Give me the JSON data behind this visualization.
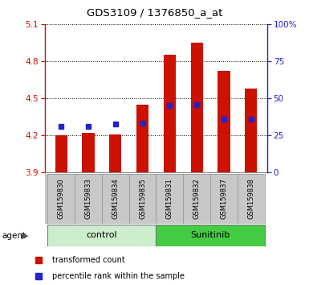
{
  "title": "GDS3109 / 1376850_a_at",
  "samples": [
    "GSM159830",
    "GSM159833",
    "GSM159834",
    "GSM159835",
    "GSM159831",
    "GSM159832",
    "GSM159837",
    "GSM159838"
  ],
  "groups": [
    "control",
    "control",
    "control",
    "control",
    "Sunitinib",
    "Sunitinib",
    "Sunitinib",
    "Sunitinib"
  ],
  "bar_tops": [
    4.2,
    4.22,
    4.21,
    4.45,
    4.85,
    4.95,
    4.72,
    4.58
  ],
  "bar_base": 3.9,
  "blue_vals": [
    4.27,
    4.27,
    4.29,
    4.3,
    4.44,
    4.45,
    4.33,
    4.33
  ],
  "ylim_left": [
    3.9,
    5.1
  ],
  "yticks_left": [
    3.9,
    4.2,
    4.5,
    4.8,
    5.1
  ],
  "yticks_right": [
    0,
    25,
    50,
    75,
    100
  ],
  "bar_color": "#cc1100",
  "blue_color": "#2222cc",
  "control_bg": "#cceecc",
  "sunitinib_bg": "#44cc44",
  "group_label_control": "control",
  "group_label_sunitinib": "Sunitinib",
  "legend_bar_label": "transformed count",
  "legend_blue_label": "percentile rank within the sample",
  "agent_label": "agent",
  "left_axis_color": "#cc1100",
  "right_axis_color": "#2222cc",
  "sample_bg": "#c8c8c8",
  "bar_width": 0.45
}
